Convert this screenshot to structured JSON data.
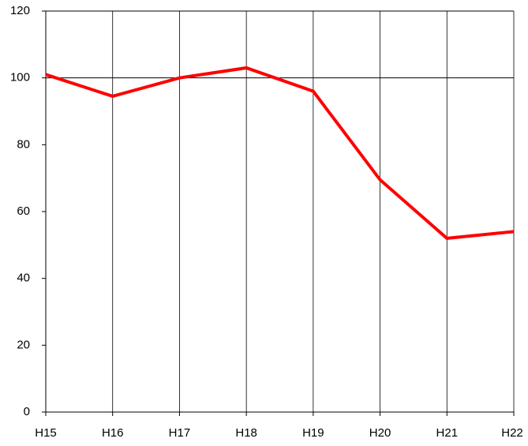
{
  "chart_data": {
    "type": "line",
    "categories": [
      "H15",
      "H16",
      "H17",
      "H18",
      "H19",
      "H20",
      "H21",
      "H22"
    ],
    "series": [
      {
        "color": "#ff0000",
        "values": [
          101,
          94.5,
          100,
          103,
          96,
          69.5,
          52,
          54
        ]
      }
    ],
    "ylim": [
      0,
      120
    ],
    "yticks": [
      0,
      20,
      40,
      60,
      80,
      100,
      120
    ],
    "reference_line": 100
  }
}
